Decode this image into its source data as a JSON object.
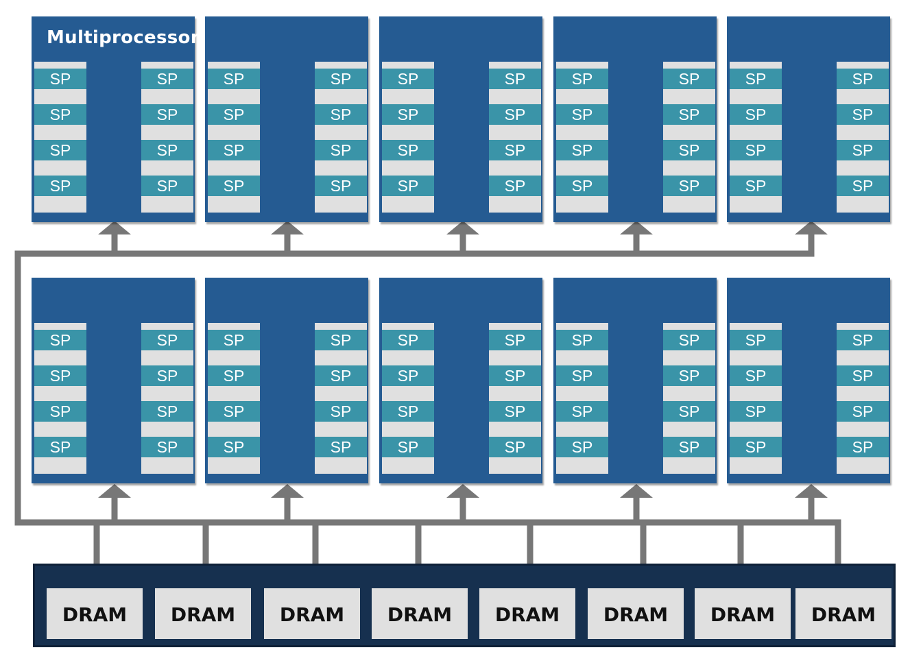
{
  "diagram": {
    "multiprocessor_label": "Multiprocessor",
    "sp_label": "SP",
    "dram_label": "DRAM",
    "rows": 2,
    "multiprocessors_per_row": 5,
    "sp_columns_per_multiprocessor": 2,
    "sp_per_column": 4,
    "dram_count": 8
  },
  "colors": {
    "multiprocessor": "#255b92",
    "sp": "#3a94a8",
    "column": "#e0e0e0",
    "wire": "#777777",
    "dram_bar": "#16304f"
  }
}
